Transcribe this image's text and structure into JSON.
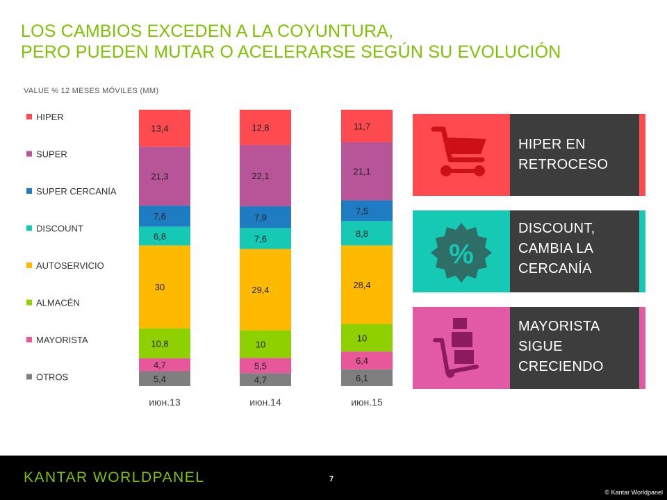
{
  "header": {
    "title_line1": "LOS CAMBIOS EXCEDEN A LA COYUNTURA,",
    "title_line2": "PERO PUEDEN MUTAR O ACELERARSE SEGÚN SU EVOLUCIÓN",
    "subtitle": "VALUE % 12 MESES MÓVILES (MM)"
  },
  "chart_data": {
    "type": "bar",
    "stacked": true,
    "ylabel": "VALUE % 12 MESES MÓVILES (MM)",
    "categories": [
      "июн.13",
      "июн.14",
      "июн.15"
    ],
    "legend_position": "left",
    "series": [
      {
        "name": "OTROS",
        "color": "#7f7f7f",
        "values": [
          5.4,
          4.7,
          6.1
        ]
      },
      {
        "name": "MAYORISTA",
        "color": "#e9579b",
        "values": [
          4.7,
          5.5,
          6.4
        ]
      },
      {
        "name": "ALMACÉN",
        "color": "#8ed000",
        "values": [
          10.8,
          10,
          10
        ]
      },
      {
        "name": "AUTOSERVICIO",
        "color": "#ffba00",
        "values": [
          30,
          29.4,
          28.4
        ]
      },
      {
        "name": "DISCOUNT",
        "color": "#16c9b5",
        "values": [
          6.8,
          7.6,
          8.8
        ]
      },
      {
        "name": "SUPER CERCANÍA",
        "color": "#1e7cc2",
        "values": [
          7.6,
          7.9,
          7.5
        ]
      },
      {
        "name": "SUPER",
        "color": "#b85599",
        "values": [
          21.3,
          22.1,
          21.1
        ]
      },
      {
        "name": "HIPER",
        "color": "#ff4a4f",
        "values": [
          13.4,
          12.8,
          11.7
        ]
      }
    ],
    "data_labels": [
      [
        "5,4",
        "4,7",
        "10,8",
        "30",
        "6,8",
        "7,6",
        "21,3",
        "13,4"
      ],
      [
        "4,7",
        "5,5",
        "10",
        "29,4",
        "7,6",
        "7,9",
        "22,1",
        "12,8"
      ],
      [
        "6,1",
        "6,4",
        "10",
        "28,4",
        "8,8",
        "7,5",
        "21,1",
        "11,7"
      ]
    ],
    "ylim": [
      0,
      100
    ]
  },
  "panels": [
    {
      "text_line1": "HIPER EN",
      "text_line2": "RETROCESO",
      "text_line3": "",
      "accent": "#ff4a4f",
      "icon": "shopping-cart-icon"
    },
    {
      "text_line1": "DISCOUNT,",
      "text_line2": "CAMBIA LA",
      "text_line3": "CERCANÍA",
      "accent": "#16c9b5",
      "icon": "percent-badge-icon"
    },
    {
      "text_line1": "MAYORISTA",
      "text_line2": "SIGUE",
      "text_line3": "CRECIENDO",
      "accent": "#e25aa6",
      "icon": "hand-truck-icon"
    }
  ],
  "footer": {
    "logo": "KANTAR WORLDPANEL",
    "page_number": "7",
    "copyright": "© Kantar Worldpanel"
  }
}
